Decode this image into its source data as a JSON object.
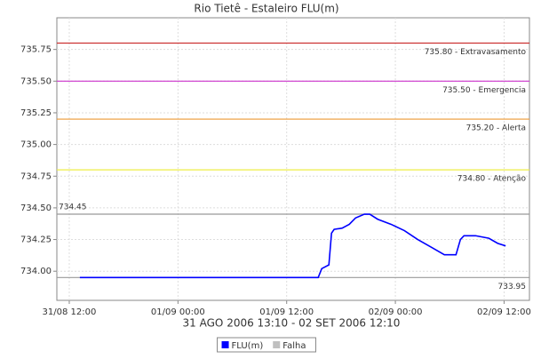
{
  "chart_data": {
    "type": "line",
    "title": "Rio Tietê - Estaleiro FLU(m)",
    "x_label": "31 AGO 2006 13:10 - 02 SET 2006 12:10",
    "x": [
      13.17,
      39.48,
      39.87,
      40.66,
      40.95,
      41.24,
      42.13,
      42.91,
      43.6,
      44.58,
      45.17,
      46.05,
      47.53,
      49.0,
      50.47,
      51.94,
      53.41,
      54.69,
      55.18,
      55.57,
      56.85,
      58.32,
      59.3,
      60.17
    ],
    "series": [
      {
        "name": "FLU(m)",
        "color": "#0000ff",
        "values": [
          733.95,
          733.95,
          734.02,
          734.05,
          734.3,
          734.33,
          734.34,
          734.37,
          734.42,
          734.45,
          734.45,
          734.41,
          734.37,
          734.32,
          734.25,
          734.19,
          734.13,
          734.13,
          734.25,
          734.28,
          734.28,
          734.26,
          734.22,
          734.2
        ]
      },
      {
        "name": "Falha",
        "color": "#c0c0c0",
        "values": [
          null,
          null,
          null,
          null,
          null,
          null,
          null,
          null,
          null,
          null,
          null,
          null,
          null,
          null,
          null,
          null,
          null,
          null,
          null,
          null,
          null,
          null,
          null,
          null
        ]
      }
    ],
    "markers": [
      {
        "value": 735.8,
        "label": "735.80 - Extravasamento",
        "color": "#cc3333"
      },
      {
        "value": 735.5,
        "label": "735.50 - Emergencia",
        "color": "#cc33cc"
      },
      {
        "value": 735.2,
        "label": "735.20 - Alerta",
        "color": "#ee9933"
      },
      {
        "value": 734.8,
        "label": "734.80 - Atenção",
        "color": "#eeee44"
      },
      {
        "value": 734.45,
        "color": "#999999",
        "side": "left"
      },
      {
        "value": 733.95,
        "color": "#999999",
        "side": "right-below"
      }
    ],
    "xlim": [
      10.63,
      62.8
    ],
    "xticks": [
      {
        "value": 12,
        "label": "31/08 12:00"
      },
      {
        "value": 24,
        "label": "01/09 00:00"
      },
      {
        "value": 36,
        "label": "01/09 12:00"
      },
      {
        "value": 48,
        "label": "02/09 00:00"
      },
      {
        "value": 60,
        "label": "02/09 12:00"
      }
    ],
    "ylim": [
      733.77,
      736.0
    ],
    "yticks": [
      {
        "value": 734,
        "label": "734.00"
      },
      734.25,
      {
        "value": 734.5,
        "label": "734.50"
      },
      734.75,
      {
        "value": 735,
        "label": "735.00"
      },
      735.25,
      {
        "value": 735.5,
        "label": "735.50"
      },
      735.75
    ],
    "grid": true
  }
}
